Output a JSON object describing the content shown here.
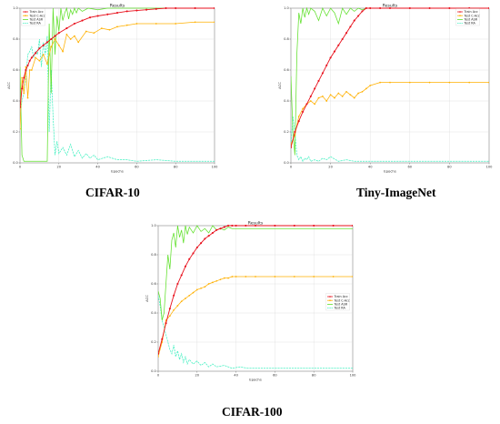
{
  "figure": {
    "captions": [
      "CIFAR-10",
      "Tiny-ImageNet",
      "CIFAR-100"
    ]
  },
  "colors": {
    "train_acc": "#e8101c",
    "test_cacc": "#ffb000",
    "test_asr": "#5fe02a",
    "test_ra": "#40f0c0"
  },
  "chart_data": [
    {
      "type": "line",
      "title": "Results",
      "xlabel": "Epochs",
      "ylabel": "ACC",
      "caption": "CIFAR-10",
      "xlim": [
        0,
        100
      ],
      "ylim": [
        0,
        1.0
      ],
      "xticks": [
        "0",
        "20",
        "40",
        "60",
        "80",
        "100"
      ],
      "yticks": [
        "0.0",
        "0.2",
        "0.4",
        "0.6",
        "0.8",
        "1.0"
      ],
      "grid": true,
      "legend": "top-left",
      "series": [
        {
          "name": "Train Acc",
          "marker": "dot",
          "x": [
            0,
            1,
            2,
            3,
            4,
            5,
            6,
            8,
            10,
            12,
            14,
            16,
            18,
            20,
            24,
            28,
            32,
            36,
            40,
            45,
            50,
            55,
            60,
            65,
            70,
            75,
            80,
            90,
            100
          ],
          "y": [
            0.36,
            0.48,
            0.55,
            0.6,
            0.63,
            0.66,
            0.68,
            0.71,
            0.74,
            0.76,
            0.78,
            0.8,
            0.82,
            0.84,
            0.87,
            0.9,
            0.92,
            0.94,
            0.95,
            0.96,
            0.97,
            0.98,
            0.985,
            0.99,
            0.995,
            1.0,
            1.0,
            1.0,
            1.0
          ]
        },
        {
          "name": "Test C-Acc",
          "marker": "dot",
          "x": [
            0,
            1,
            2,
            3,
            4,
            5,
            6,
            8,
            10,
            12,
            14,
            16,
            18,
            20,
            22,
            24,
            26,
            28,
            30,
            34,
            38,
            42,
            46,
            50,
            55,
            60,
            70,
            80,
            90,
            100
          ],
          "y": [
            0.22,
            0.55,
            0.45,
            0.62,
            0.42,
            0.6,
            0.6,
            0.68,
            0.66,
            0.7,
            0.64,
            0.75,
            0.8,
            0.76,
            0.72,
            0.83,
            0.8,
            0.82,
            0.78,
            0.85,
            0.84,
            0.87,
            0.86,
            0.88,
            0.89,
            0.9,
            0.9,
            0.9,
            0.91,
            0.91
          ]
        },
        {
          "name": "Test ASR",
          "marker": "none",
          "x": [
            0,
            1,
            2,
            3,
            4,
            5,
            6,
            7,
            8,
            9,
            10,
            11,
            12,
            13,
            14,
            15,
            16,
            17,
            18,
            19,
            20,
            21,
            22,
            23,
            24,
            25,
            26,
            27,
            28,
            29,
            30,
            32,
            35,
            40,
            45,
            50,
            60,
            70,
            80,
            90,
            100
          ],
          "y": [
            0.62,
            0.05,
            0.01,
            0.01,
            0.01,
            0.01,
            0.01,
            0.01,
            0.01,
            0.01,
            0.01,
            0.01,
            0.01,
            0.01,
            0.01,
            0.9,
            0.45,
            1.0,
            0.7,
            0.95,
            0.85,
            1.0,
            0.92,
            0.97,
            1.0,
            0.93,
            0.99,
            0.96,
            1.0,
            0.97,
            1.0,
            0.98,
            1.0,
            0.99,
            1.0,
            1.0,
            1.0,
            1.0,
            1.0,
            1.0,
            1.0
          ]
        },
        {
          "name": "Test RA",
          "marker": "none",
          "x": [
            0,
            1,
            2,
            3,
            4,
            5,
            6,
            7,
            8,
            9,
            10,
            11,
            12,
            13,
            14,
            15,
            16,
            17,
            18,
            19,
            20,
            22,
            24,
            26,
            28,
            30,
            32,
            34,
            36,
            38,
            40,
            45,
            50,
            55,
            60,
            70,
            80,
            90,
            100
          ],
          "y": [
            0.3,
            0.4,
            0.45,
            0.55,
            0.7,
            0.72,
            0.75,
            0.68,
            0.72,
            0.7,
            0.8,
            0.62,
            0.78,
            0.7,
            0.82,
            0.2,
            0.6,
            0.3,
            0.05,
            0.14,
            0.06,
            0.1,
            0.05,
            0.12,
            0.04,
            0.08,
            0.03,
            0.06,
            0.03,
            0.05,
            0.02,
            0.04,
            0.02,
            0.02,
            0.01,
            0.02,
            0.01,
            0.01,
            0.01
          ]
        }
      ]
    },
    {
      "type": "line",
      "title": "Results",
      "xlabel": "Epochs",
      "ylabel": "ACC",
      "caption": "Tiny-ImageNet",
      "xlim": [
        0,
        100
      ],
      "ylim": [
        0,
        1.0
      ],
      "xticks": [
        "0",
        "20",
        "40",
        "60",
        "80",
        "100"
      ],
      "yticks": [
        "0.0",
        "0.2",
        "0.4",
        "0.6",
        "0.8",
        "1.0"
      ],
      "grid": true,
      "legend": "top-right",
      "series": [
        {
          "name": "Train Acc",
          "marker": "dot",
          "x": [
            0,
            2,
            4,
            6,
            8,
            10,
            12,
            14,
            16,
            18,
            20,
            22,
            24,
            26,
            28,
            30,
            32,
            34,
            36,
            38,
            40,
            45,
            50,
            60,
            70,
            80,
            90,
            100
          ],
          "y": [
            0.1,
            0.2,
            0.27,
            0.33,
            0.38,
            0.43,
            0.48,
            0.53,
            0.58,
            0.63,
            0.68,
            0.72,
            0.76,
            0.8,
            0.84,
            0.88,
            0.92,
            0.95,
            0.98,
            1.0,
            1.0,
            1.0,
            1.0,
            1.0,
            1.0,
            1.0,
            1.0,
            1.0
          ]
        },
        {
          "name": "Test C-Acc",
          "marker": "dot",
          "x": [
            0,
            2,
            4,
            6,
            8,
            10,
            12,
            14,
            16,
            18,
            20,
            22,
            24,
            26,
            28,
            30,
            32,
            34,
            36,
            38,
            40,
            45,
            50,
            60,
            70,
            80,
            90,
            100
          ],
          "y": [
            0.12,
            0.18,
            0.3,
            0.35,
            0.38,
            0.4,
            0.38,
            0.42,
            0.43,
            0.4,
            0.44,
            0.42,
            0.45,
            0.43,
            0.46,
            0.44,
            0.42,
            0.45,
            0.46,
            0.48,
            0.5,
            0.52,
            0.52,
            0.52,
            0.52,
            0.52,
            0.52,
            0.52
          ]
        },
        {
          "name": "Test ASR",
          "marker": "none",
          "x": [
            0,
            1,
            2,
            3,
            4,
            5,
            6,
            7,
            8,
            9,
            10,
            12,
            14,
            16,
            18,
            20,
            22,
            24,
            26,
            28,
            30,
            32,
            34,
            36,
            38,
            40,
            45,
            50,
            60,
            70,
            80,
            90,
            100
          ],
          "y": [
            0.56,
            0.2,
            0.05,
            0.7,
            0.97,
            0.9,
            1.0,
            0.94,
            1.0,
            0.96,
            1.0,
            0.98,
            0.92,
            1.0,
            0.95,
            1.0,
            0.97,
            0.9,
            1.0,
            0.96,
            1.0,
            0.98,
            1.0,
            0.99,
            1.0,
            1.0,
            1.0,
            1.0,
            1.0,
            1.0,
            1.0,
            1.0,
            1.0
          ]
        },
        {
          "name": "Test RA",
          "marker": "none",
          "x": [
            0,
            1,
            2,
            3,
            4,
            5,
            6,
            7,
            8,
            9,
            10,
            12,
            14,
            16,
            18,
            20,
            24,
            28,
            32,
            36,
            40,
            50,
            60,
            70,
            80,
            90,
            100
          ],
          "y": [
            0.1,
            0.3,
            0.2,
            0.05,
            0.02,
            0.04,
            0.01,
            0.03,
            0.02,
            0.04,
            0.01,
            0.02,
            0.01,
            0.03,
            0.02,
            0.04,
            0.01,
            0.02,
            0.01,
            0.01,
            0.01,
            0.01,
            0.01,
            0.01,
            0.01,
            0.01,
            0.01
          ]
        }
      ]
    },
    {
      "type": "line",
      "title": "Results",
      "xlabel": "Epochs",
      "ylabel": "ACC",
      "caption": "CIFAR-100",
      "xlim": [
        0,
        100
      ],
      "ylim": [
        0,
        1.0
      ],
      "xticks": [
        "0",
        "20",
        "40",
        "60",
        "80",
        "100"
      ],
      "yticks": [
        "0.0",
        "0.2",
        "0.4",
        "0.6",
        "0.8",
        "1.0"
      ],
      "grid": true,
      "legend": "center-right",
      "series": [
        {
          "name": "Train Acc",
          "marker": "dot",
          "x": [
            0,
            2,
            4,
            6,
            8,
            10,
            12,
            14,
            16,
            18,
            20,
            22,
            24,
            26,
            28,
            30,
            32,
            34,
            36,
            38,
            40,
            45,
            50,
            60,
            70,
            80,
            90,
            100
          ],
          "y": [
            0.12,
            0.22,
            0.33,
            0.43,
            0.52,
            0.6,
            0.66,
            0.72,
            0.77,
            0.81,
            0.85,
            0.88,
            0.91,
            0.93,
            0.95,
            0.97,
            0.98,
            0.99,
            1.0,
            1.0,
            1.0,
            1.0,
            1.0,
            1.0,
            1.0,
            1.0,
            1.0,
            1.0
          ]
        },
        {
          "name": "Test C-Acc",
          "marker": "dot",
          "x": [
            0,
            2,
            4,
            6,
            8,
            10,
            12,
            14,
            16,
            18,
            20,
            22,
            24,
            26,
            28,
            30,
            32,
            34,
            36,
            38,
            40,
            45,
            50,
            60,
            70,
            80,
            90,
            100
          ],
          "y": [
            0.1,
            0.2,
            0.35,
            0.38,
            0.42,
            0.45,
            0.48,
            0.5,
            0.52,
            0.54,
            0.56,
            0.57,
            0.58,
            0.6,
            0.61,
            0.62,
            0.63,
            0.64,
            0.64,
            0.65,
            0.65,
            0.65,
            0.65,
            0.65,
            0.65,
            0.65,
            0.65,
            0.65
          ]
        },
        {
          "name": "Test ASR",
          "marker": "none",
          "x": [
            0,
            1,
            2,
            3,
            4,
            5,
            6,
            7,
            8,
            9,
            10,
            11,
            12,
            13,
            14,
            15,
            16,
            18,
            20,
            22,
            24,
            26,
            28,
            30,
            32,
            34,
            36,
            38,
            40,
            45,
            50,
            60,
            70,
            80,
            90,
            100
          ],
          "y": [
            0.55,
            0.5,
            0.35,
            0.4,
            0.6,
            0.8,
            0.7,
            0.9,
            0.95,
            0.85,
            1.0,
            0.92,
            0.97,
            0.88,
            1.0,
            0.94,
            0.99,
            0.95,
            1.0,
            0.96,
            0.98,
            0.95,
            1.0,
            0.97,
            0.98,
            0.97,
            0.99,
            0.98,
            0.98,
            0.98,
            0.98,
            0.98,
            0.98,
            0.98,
            0.98,
            0.98
          ]
        },
        {
          "name": "Test RA",
          "marker": "none",
          "x": [
            0,
            1,
            2,
            3,
            4,
            5,
            6,
            7,
            8,
            9,
            10,
            11,
            12,
            13,
            14,
            15,
            16,
            18,
            20,
            22,
            24,
            26,
            28,
            30,
            34,
            38,
            42,
            46,
            50,
            60,
            70,
            80,
            90,
            100
          ],
          "y": [
            0.52,
            0.45,
            0.35,
            0.3,
            0.25,
            0.2,
            0.15,
            0.12,
            0.18,
            0.1,
            0.14,
            0.08,
            0.12,
            0.06,
            0.1,
            0.05,
            0.08,
            0.05,
            0.07,
            0.04,
            0.06,
            0.03,
            0.05,
            0.03,
            0.04,
            0.02,
            0.03,
            0.02,
            0.02,
            0.02,
            0.02,
            0.02,
            0.02,
            0.02
          ]
        }
      ]
    }
  ]
}
